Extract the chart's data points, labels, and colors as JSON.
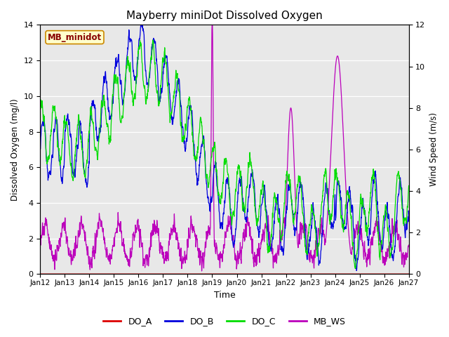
{
  "title": "Mayberry miniDot Dissolved Oxygen",
  "xlabel": "Time",
  "ylabel_left": "Dissolved Oxygen (mg/l)",
  "ylabel_right": "Wind Speed (m/s)",
  "annotation_text": "MB_minidot",
  "xlim_start": 0,
  "xlim_end": 15,
  "ylim_left": [
    0,
    14
  ],
  "ylim_right": [
    0,
    12
  ],
  "xtick_labels": [
    "Jan 12",
    "Jan 13",
    "Jan 14",
    "Jan 15",
    "Jan 16",
    "Jan 17",
    "Jan 18",
    "Jan 19",
    "Jan 20",
    "Jan 21",
    "Jan 22",
    "Jan 23",
    "Jan 24",
    "Jan 25",
    "Jan 26",
    "Jan 27"
  ],
  "yticks_left": [
    0,
    2,
    4,
    6,
    8,
    10,
    12,
    14
  ],
  "yticks_right": [
    0,
    2,
    4,
    6,
    8,
    10,
    12
  ],
  "plot_bg": "#e8e8e8",
  "DO_A_color": "#dd0000",
  "DO_B_color": "#0000dd",
  "DO_C_color": "#00dd00",
  "MB_WS_color": "#bb00bb",
  "legend_labels": [
    "DO_A",
    "DO_B",
    "DO_C",
    "MB_WS"
  ],
  "legend_colors": [
    "#dd0000",
    "#0000dd",
    "#00dd00",
    "#bb00bb"
  ],
  "num_points": 2000,
  "seed": 12345
}
